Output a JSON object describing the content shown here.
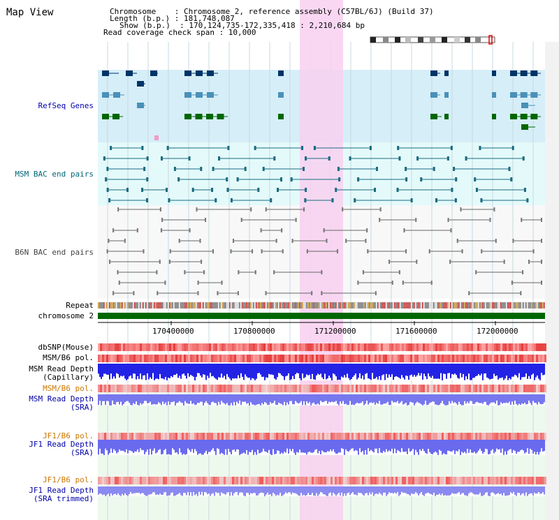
{
  "header": {
    "title": "Map View",
    "chromosome_line": "Chromosome    : Chromosome 2, reference assembly (C57BL/6J) (Build 37)",
    "length_line": "Length (b.p.) : 181,748,087",
    "show_line": "Show (b.p.)  : 170,124,735-172,335,418 : 2,210,684 bp",
    "span_line": "Read coverage check span : 10,000"
  },
  "tracks": {
    "refseq": "RefSeq Genes",
    "msm_bac": "MSM BAC end pairs",
    "b6n_bac": "B6N BAC end pairs",
    "repeat": "Repeat",
    "chromosome": "chromosome 2",
    "dbsnp": "dbSNP(Mouse)",
    "msm_b6_pol_1": "MSM/B6 pol.",
    "msm_depth_cap_1": "MSM Read Depth",
    "msm_depth_cap_2": "(Capillary)",
    "msm_b6_pol_2": "MSM/B6 pol.",
    "msm_depth_sra_1": "MSM Read Depth",
    "msm_depth_sra_2": "(SRA)",
    "jf1_b6_pol_1": "JF1/B6 pol.",
    "jf1_depth_sra_1": "JF1 Read Depth",
    "jf1_depth_sra_2": "(SRA)",
    "jf1_b6_pol_2": "JF1/B6 pol.",
    "jf1_depth_trim_1": "JF1 Read Depth",
    "jf1_depth_trim_2": "(SRA trimmed)"
  },
  "axis": {
    "ticks": [
      "170400000",
      "170800000",
      "171200000",
      "171600000",
      "172000000"
    ]
  },
  "colors": {
    "label_blue": "#0000aa",
    "label_teal": "#006677",
    "label_gray": "#444444",
    "label_orange": "#cc7700",
    "refseq_bg": "#d6eef8",
    "msm_bg": "#e4fafa",
    "highlight": "#f8d0f0",
    "chrom_green": "#006600"
  }
}
